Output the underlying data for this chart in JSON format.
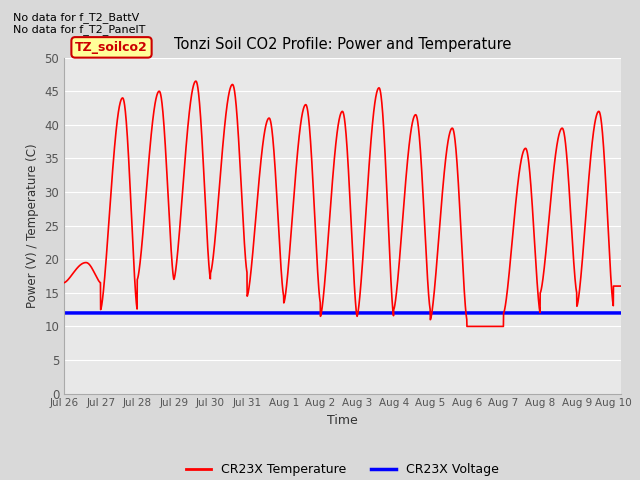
{
  "title": "Tonzi Soil CO2 Profile: Power and Temperature",
  "no_data_text": "No data for f_T2_BattV\nNo data for f_T2_PanelT",
  "ylabel": "Power (V) / Temperature (C)",
  "xlabel": "Time",
  "ylim": [
    0,
    50
  ],
  "yticks": [
    0,
    5,
    10,
    15,
    20,
    25,
    30,
    35,
    40,
    45,
    50
  ],
  "xtick_labels": [
    "Jul 26",
    "Jul 27",
    "Jul 28",
    "Jul 29",
    "Jul 30",
    "Jul 31",
    "Aug 1",
    "Aug 2",
    "Aug 3",
    "Aug 4",
    "Aug 5",
    "Aug 6",
    "Aug 7",
    "Aug 8",
    "Aug 9",
    "Aug 10"
  ],
  "label_box": "TZ_soilco2",
  "label_box_color": "#ffff99",
  "label_box_edge": "#cc0000",
  "temp_color": "#ff0000",
  "volt_color": "#0000ff",
  "background_color": "#d9d9d9",
  "plot_bg_color": "#e8e8e8",
  "legend_temp": "CR23X Temperature",
  "legend_volt": "CR23X Voltage",
  "voltage_value": 12.0,
  "n_days": 15.2,
  "day_peaks": [
    19.5,
    44.0,
    45.0,
    46.5,
    46.0,
    41.0,
    43.0,
    42.0,
    45.5,
    41.5,
    39.5,
    10.0,
    36.5,
    39.5,
    42.0,
    16.0
  ],
  "day_mins": [
    16.5,
    12.5,
    17.0,
    17.0,
    18.0,
    14.5,
    13.5,
    11.5,
    11.5,
    12.5,
    11.0,
    10.0,
    12.0,
    15.0,
    13.0,
    16.0
  ]
}
